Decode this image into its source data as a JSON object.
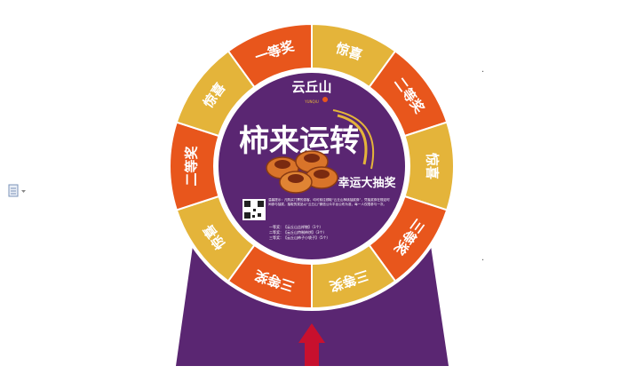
{
  "doc_icon": "document-icon",
  "dots": [
    ".",
    "."
  ],
  "wheel": {
    "segments": [
      {
        "label": "一等奖",
        "color": "#e8561c"
      },
      {
        "label": "惊喜",
        "color": "#e4b43a"
      },
      {
        "label": "二等奖",
        "color": "#e8561c"
      },
      {
        "label": "惊喜",
        "color": "#e4b43a"
      },
      {
        "label": "三等奖",
        "color": "#e8561c"
      },
      {
        "label": "三等奖",
        "color": "#e4b43a"
      },
      {
        "label": "三等奖",
        "color": "#e8561c"
      },
      {
        "label": "惊喜",
        "color": "#e4b43a"
      },
      {
        "label": "二等奖",
        "color": "#e8561c"
      },
      {
        "label": "惊喜",
        "color": "#e4b43a"
      }
    ],
    "stand_color": "#5a2672",
    "pointer_color": "#c8102e"
  },
  "center": {
    "logo_text": "云丘山",
    "logo_sub": "YUNQIU",
    "title_main": "柿来运转",
    "subtitle": "幸运大抽奖",
    "rules": "温馨提示：凡购买门票的游客，均可前往领取“云丘山柿桃抽奖券”，凭抽奖券在规定时间参与抽奖，抽取的奖品以“云丘山”微信公众平台公布为准，每一人仅限参与一次。",
    "prizes": [
      "一等奖：【云丘山吉祥物】（1个）",
      "二等奖：【云丘山特制柿饼】（3个）",
      "三等奖：【云丘山柿子小袋子】（5个）"
    ]
  }
}
